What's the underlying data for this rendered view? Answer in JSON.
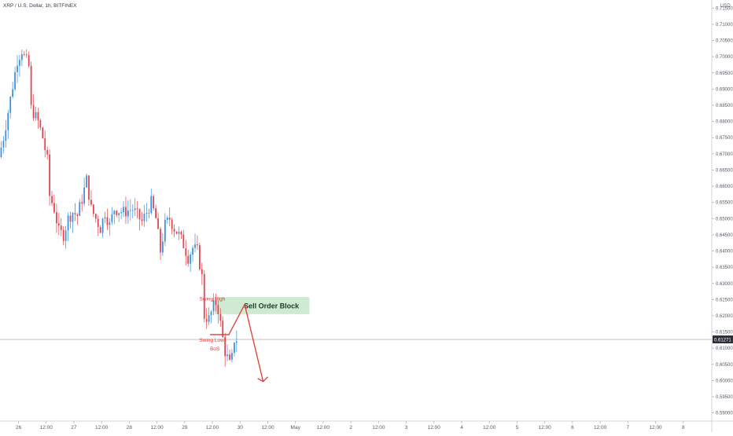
{
  "chart_data": {
    "type": "candlestick",
    "title": "XRP / U.S. Dollar, 1h, BITFINEX",
    "currency_label": "USD",
    "ylim": [
      0.5875,
      0.7175
    ],
    "y_ticks": [
      "0.59000",
      "0.59500",
      "0.60000",
      "0.60500",
      "0.61000",
      "0.61500",
      "0.62000",
      "0.62500",
      "0.63000",
      "0.63500",
      "0.64000",
      "0.64500",
      "0.65000",
      "0.65500",
      "0.66000",
      "0.66500",
      "0.67000",
      "0.67500",
      "0.68000",
      "0.68500",
      "0.69000",
      "0.69500",
      "0.70000",
      "0.70500",
      "0.71000",
      "0.71500"
    ],
    "x_ticks": [
      {
        "label": "26",
        "hour": 0
      },
      {
        "label": "12:00",
        "hour": 12
      },
      {
        "label": "27",
        "hour": 24
      },
      {
        "label": "12:00",
        "hour": 36
      },
      {
        "label": "28",
        "hour": 48
      },
      {
        "label": "12:00",
        "hour": 60
      },
      {
        "label": "29",
        "hour": 72
      },
      {
        "label": "12:00",
        "hour": 84
      },
      {
        "label": "30",
        "hour": 96
      },
      {
        "label": "12:00",
        "hour": 108
      },
      {
        "label": "May",
        "hour": 120
      },
      {
        "label": "12:00",
        "hour": 132
      },
      {
        "label": "2",
        "hour": 144
      },
      {
        "label": "12:00",
        "hour": 156
      },
      {
        "label": "3",
        "hour": 168
      },
      {
        "label": "12:00",
        "hour": 180
      },
      {
        "label": "4",
        "hour": 192
      },
      {
        "label": "12:00",
        "hour": 204
      },
      {
        "label": "5",
        "hour": 216
      },
      {
        "label": "12:00",
        "hour": 228
      },
      {
        "label": "6",
        "hour": 240
      },
      {
        "label": "12:00",
        "hour": 252
      },
      {
        "label": "7",
        "hour": 264
      },
      {
        "label": "12:00",
        "hour": 276
      },
      {
        "label": "8",
        "hour": 288
      }
    ],
    "x_start_hour": -8,
    "x_end_hour": 300,
    "colors": {
      "up": "#3a8fe0",
      "down": "#e2424a",
      "annotation": "#e53935",
      "zone_fill": "#c8e6c9",
      "zone_text": "#1b3a2a",
      "last_price_bg": "#2a2e39",
      "grid": "#d5d8de",
      "price_line": "#9e9e9e"
    },
    "last_price": "0.61271",
    "last_price_value": 0.61271,
    "keypoints": [
      {
        "hour": -8,
        "price": 0.669
      },
      {
        "hour": -6,
        "price": 0.675
      },
      {
        "hour": -4,
        "price": 0.683
      },
      {
        "hour": -2,
        "price": 0.691
      },
      {
        "hour": 0,
        "price": 0.699
      },
      {
        "hour": 2,
        "price": 0.702
      },
      {
        "hour": 3,
        "price": 0.7
      },
      {
        "hour": 5,
        "price": 0.697
      },
      {
        "hour": 6,
        "price": 0.684
      },
      {
        "hour": 9,
        "price": 0.68
      },
      {
        "hour": 11,
        "price": 0.675
      },
      {
        "hour": 13,
        "price": 0.668
      },
      {
        "hour": 14,
        "price": 0.657
      },
      {
        "hour": 16,
        "price": 0.653
      },
      {
        "hour": 18,
        "price": 0.646
      },
      {
        "hour": 20,
        "price": 0.645
      },
      {
        "hour": 22,
        "price": 0.65
      },
      {
        "hour": 24,
        "price": 0.652
      },
      {
        "hour": 26,
        "price": 0.651
      },
      {
        "hour": 28,
        "price": 0.656
      },
      {
        "hour": 30,
        "price": 0.662
      },
      {
        "hour": 32,
        "price": 0.653
      },
      {
        "hour": 34,
        "price": 0.65
      },
      {
        "hour": 36,
        "price": 0.647
      },
      {
        "hour": 38,
        "price": 0.652
      },
      {
        "hour": 40,
        "price": 0.648
      },
      {
        "hour": 42,
        "price": 0.653
      },
      {
        "hour": 46,
        "price": 0.652
      },
      {
        "hour": 50,
        "price": 0.653
      },
      {
        "hour": 54,
        "price": 0.649
      },
      {
        "hour": 58,
        "price": 0.655
      },
      {
        "hour": 60,
        "price": 0.65
      },
      {
        "hour": 62,
        "price": 0.64
      },
      {
        "hour": 64,
        "price": 0.648
      },
      {
        "hour": 66,
        "price": 0.65
      },
      {
        "hour": 68,
        "price": 0.647
      },
      {
        "hour": 70,
        "price": 0.645
      },
      {
        "hour": 72,
        "price": 0.642
      },
      {
        "hour": 74,
        "price": 0.638
      },
      {
        "hour": 76,
        "price": 0.641
      },
      {
        "hour": 78,
        "price": 0.64
      },
      {
        "hour": 80,
        "price": 0.632
      },
      {
        "hour": 81,
        "price": 0.62
      },
      {
        "hour": 83,
        "price": 0.619
      },
      {
        "hour": 85,
        "price": 0.623
      },
      {
        "hour": 86,
        "price": 0.624
      },
      {
        "hour": 87,
        "price": 0.622
      },
      {
        "hour": 89,
        "price": 0.613
      },
      {
        "hour": 90,
        "price": 0.609
      },
      {
        "hour": 91,
        "price": 0.607
      },
      {
        "hour": 92,
        "price": 0.605
      },
      {
        "hour": 93,
        "price": 0.607
      },
      {
        "hour": 94,
        "price": 0.6127
      }
    ],
    "annotations": {
      "swing_high_label": "Swing High",
      "swing_high": {
        "hour": 86,
        "price": 0.6235
      },
      "swing_low_label": "Swing Low",
      "bos_label": "BoS",
      "bos_level": {
        "hour_start": 83,
        "hour_end": 91,
        "price": 0.6142
      },
      "zone_label": "Sell Order Block",
      "zone": {
        "hour_start": 85,
        "hour_end": 126,
        "price_high": 0.6258,
        "price_low": 0.6205
      },
      "arrow_path": [
        {
          "hour": 91,
          "price": 0.614
        },
        {
          "hour": 98,
          "price": 0.6235
        },
        {
          "hour": 106,
          "price": 0.5997
        }
      ]
    }
  }
}
